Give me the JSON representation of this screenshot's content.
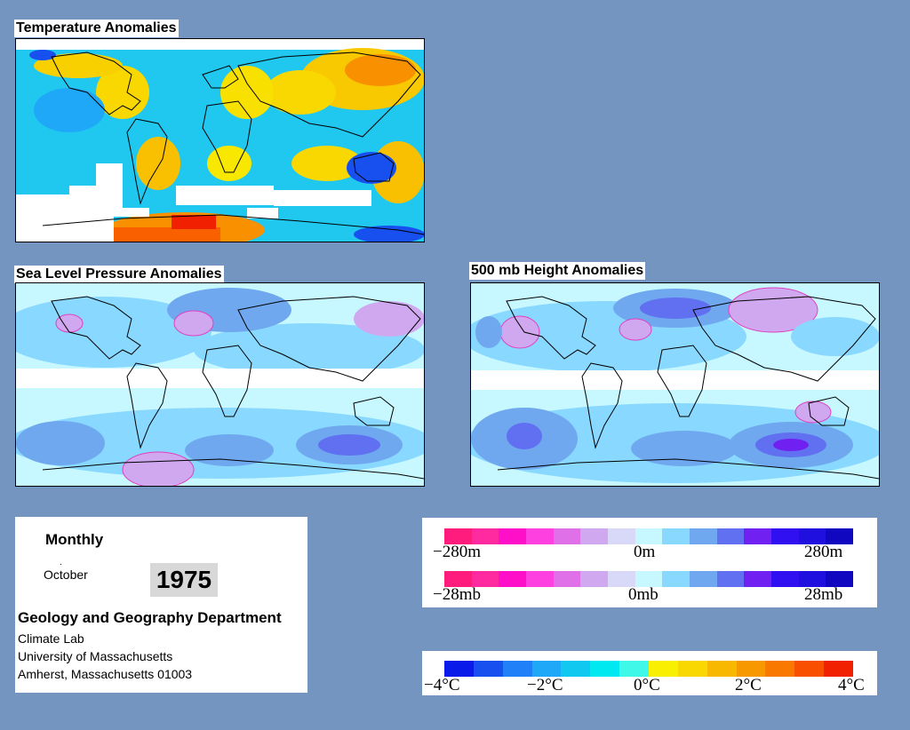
{
  "titles": {
    "temperature": "Temperature Anomalies",
    "slp": "Sea Level Pressure Anomalies",
    "height500": "500 mb Height Anomalies"
  },
  "info": {
    "period": "Monthly",
    "month": "October",
    "year": "1975",
    "department": "Geology and Geography Department",
    "lab": "Climate Lab",
    "university": "University of Massachusetts",
    "city": "Amherst, Massachusetts 01003"
  },
  "legend_height": {
    "labels": [
      "−280m",
      "0m",
      "280m"
    ],
    "colors": [
      "#ff1c7c",
      "#ff2aa0",
      "#ff10c8",
      "#ff40e0",
      "#e070e8",
      "#d0a8f0",
      "#d8d8f8",
      "#c8f8ff",
      "#88d8ff",
      "#70a8f0",
      "#6070f0",
      "#7020f0",
      "#3010f0",
      "#2010e0",
      "#1008c0"
    ]
  },
  "legend_pressure": {
    "labels": [
      "−28mb",
      "0mb",
      "28mb"
    ],
    "colors": [
      "#ff1c7c",
      "#ff2aa0",
      "#ff10c8",
      "#ff40e0",
      "#e070e8",
      "#d0a8f0",
      "#d8d8f8",
      "#c8f8ff",
      "#88d8ff",
      "#70a8f0",
      "#6070f0",
      "#7020f0",
      "#3010f0",
      "#2010e0",
      "#1008c0"
    ]
  },
  "legend_temperature": {
    "labels": [
      "−4°C",
      "−2°C",
      "0°C",
      "2°C",
      "4°C"
    ],
    "colors": [
      "#0a1ae8",
      "#1850f0",
      "#2080f8",
      "#20a8f8",
      "#10c8f0",
      "#00e8f0",
      "#40f8e8",
      "#f8f000",
      "#f8d800",
      "#f8b800",
      "#f89800",
      "#f87800",
      "#f85000",
      "#f02000"
    ]
  }
}
